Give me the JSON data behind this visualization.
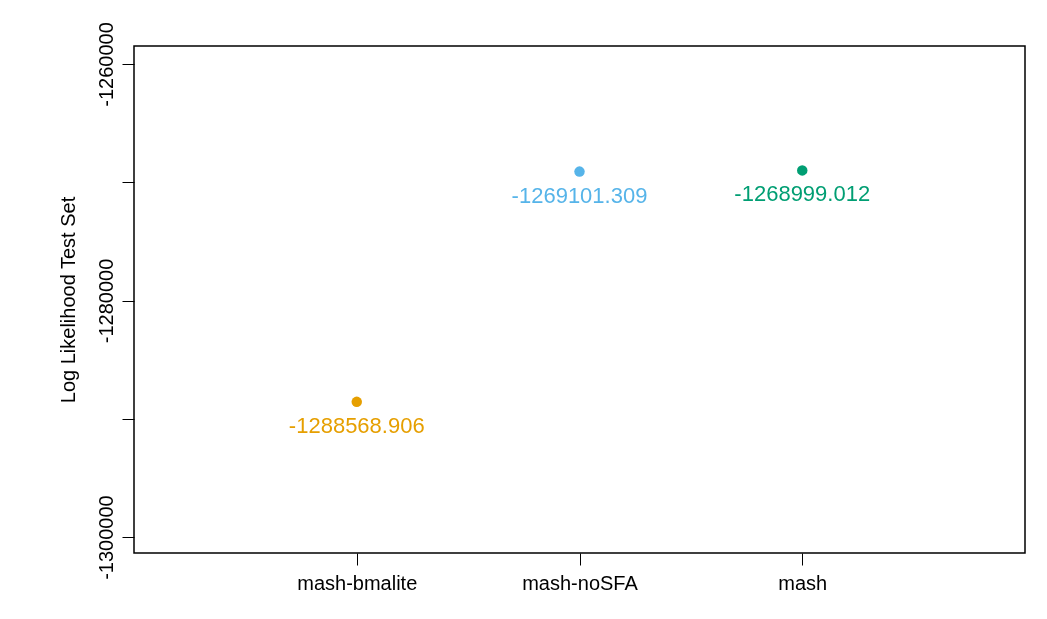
{
  "chart_data": {
    "type": "scatter",
    "ylabel": "Log Likelihood Test Set",
    "categories": [
      "mash-bmalite",
      "mash-noSFA",
      "mash"
    ],
    "values": [
      -1288568.906,
      -1269101.309,
      -1268999.012
    ],
    "colors": [
      "#e69f00",
      "#56b4e9",
      "#009e73"
    ],
    "ylim": [
      -1301350,
      -1258480
    ],
    "yticks": [
      -1300000,
      {
        "value": -1290000,
        "label": null
      },
      -1280000,
      {
        "value": -1270000,
        "label": null
      },
      -1260000
    ],
    "data_labels": true,
    "marker": "circle",
    "grid": false
  }
}
